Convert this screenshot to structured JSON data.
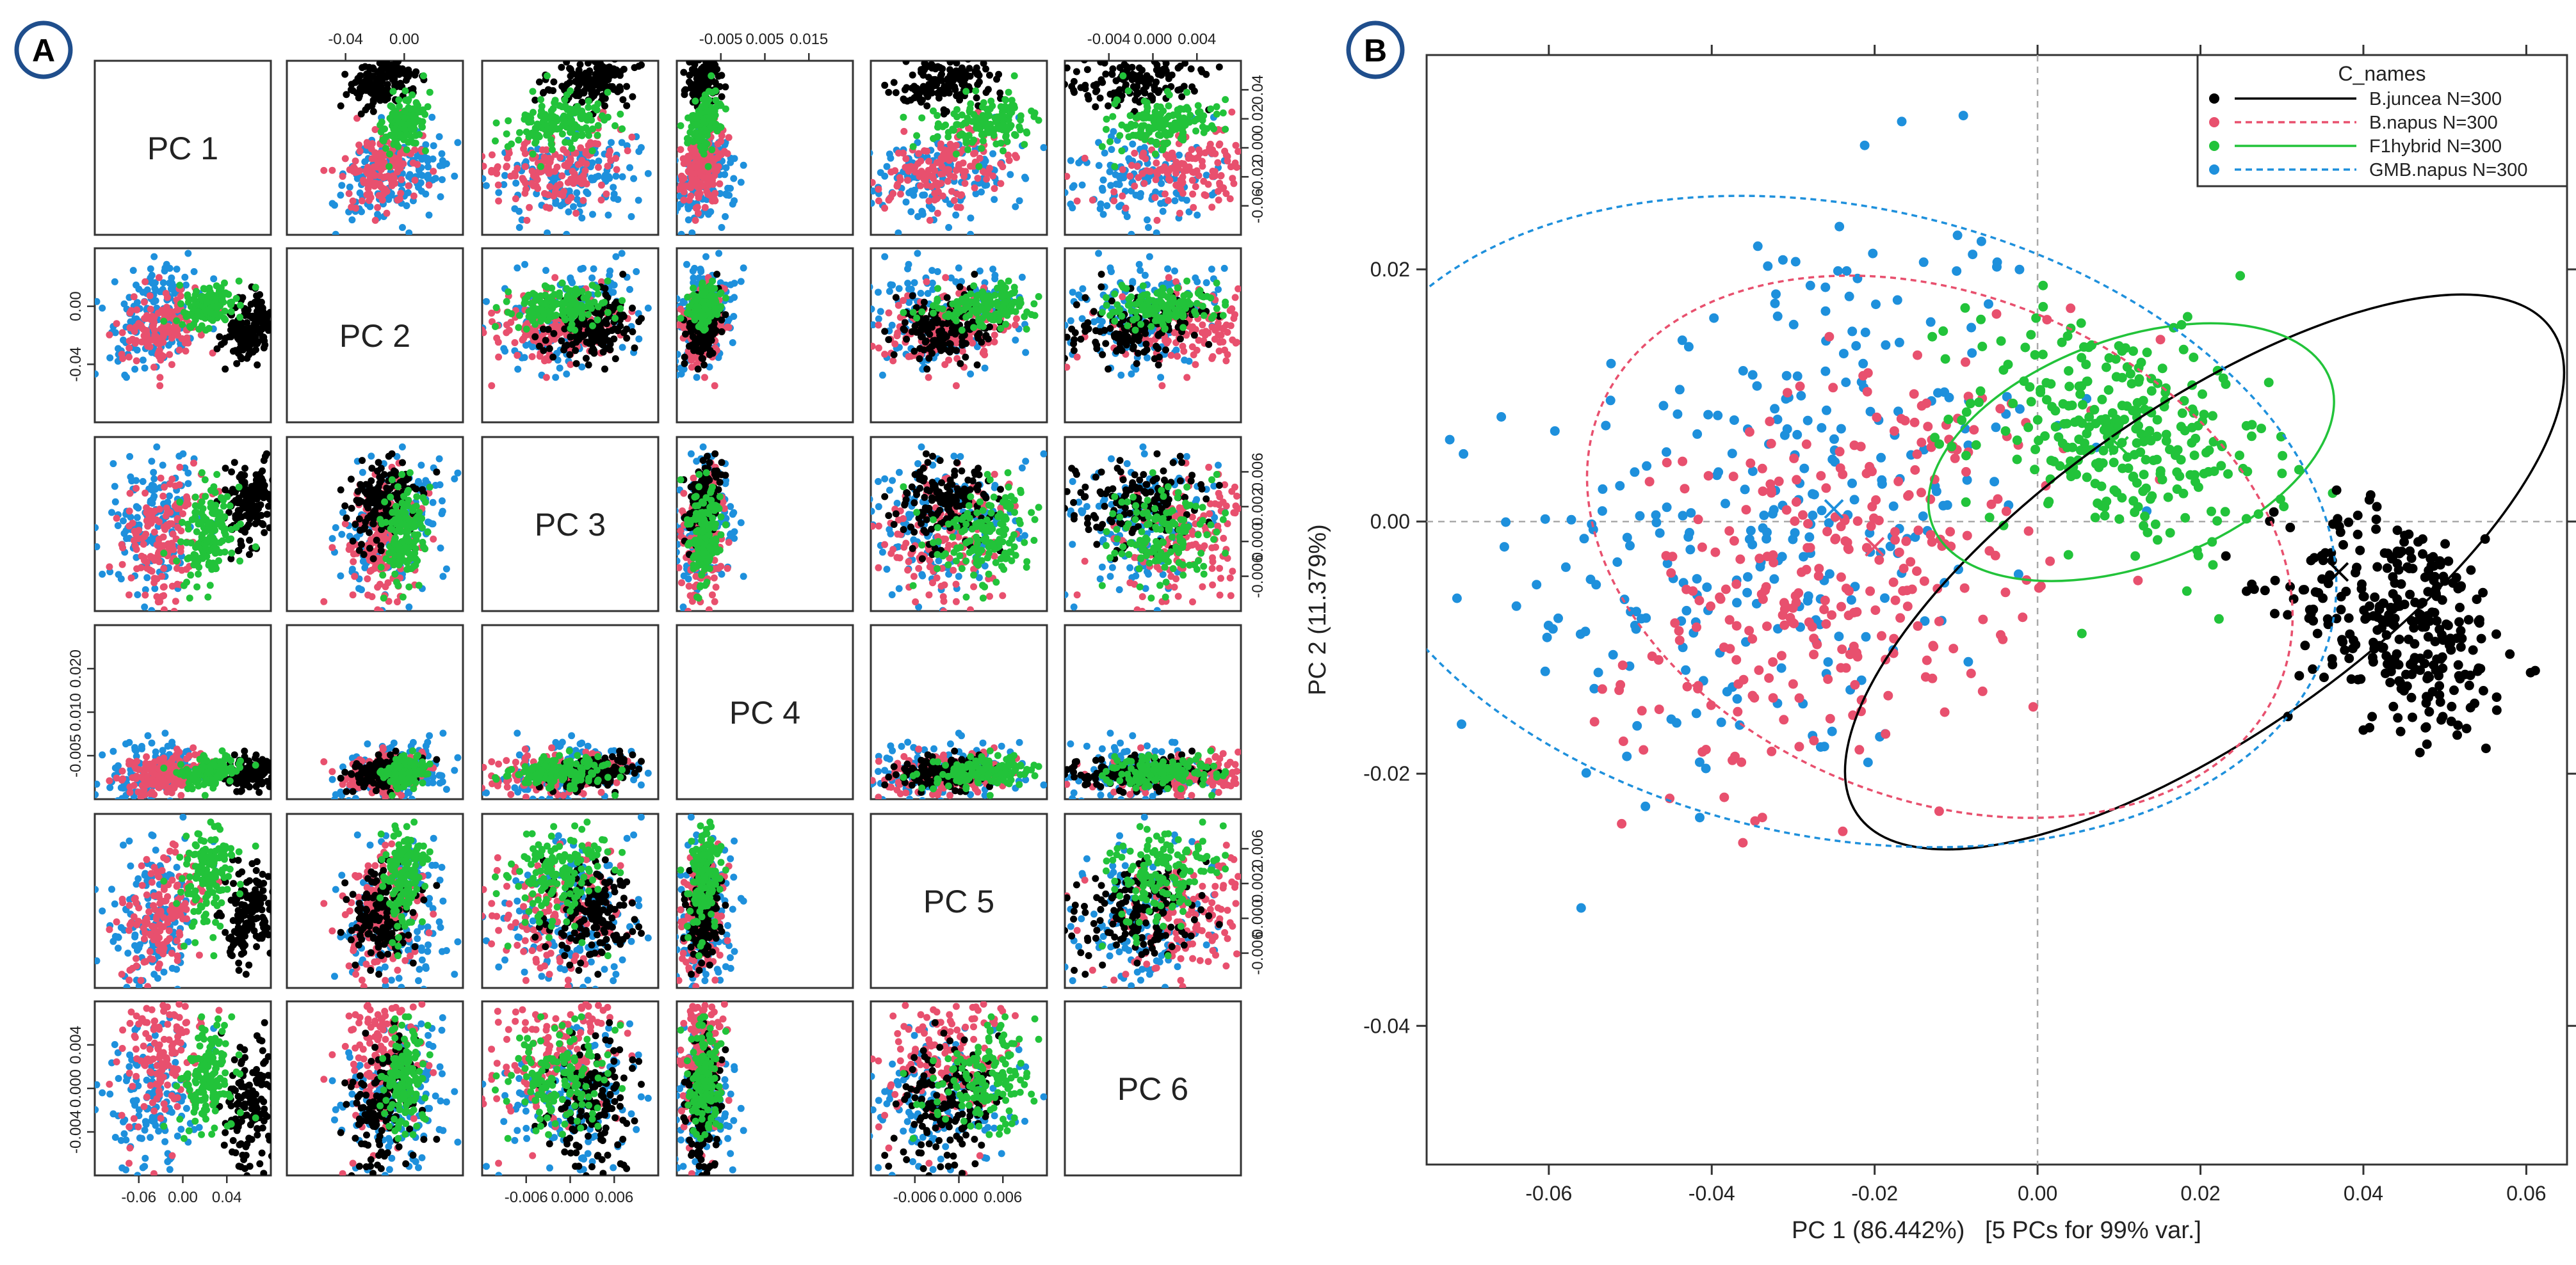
{
  "panels": {
    "A": {
      "badge": "A",
      "variables": [
        "PC 1",
        "PC 2",
        "PC 3",
        "PC 4",
        "PC 5",
        "PC 6"
      ],
      "top_ticks": [
        [
          "-0.04",
          "0.00"
        ],
        [
          "-0.005",
          "0.005",
          "0.015"
        ],
        [
          "-0.004",
          "0.000",
          "0.004"
        ]
      ],
      "right_ticks": [
        [
          "0.04",
          "0.02",
          "0.00",
          "-0.02",
          "-0.06"
        ],
        [
          "0.006",
          "0.002",
          "0.000",
          "-0.006"
        ],
        [
          "0.006",
          "0.002",
          "0.000",
          "-0.006"
        ]
      ],
      "left_ticks": [
        [
          "0.00",
          "-0.04"
        ],
        [
          "0.020",
          "0.010",
          "-0.005"
        ],
        [
          "0.004",
          "0.000",
          "-0.004"
        ]
      ],
      "bottom_ticks": [
        [
          "-0.06",
          "0.00",
          "0.04"
        ],
        [
          "-0.006",
          "0.000",
          "0.006"
        ],
        [
          "-0.006",
          "0.000",
          "0.006"
        ]
      ]
    },
    "B": {
      "badge": "B",
      "legend_title": "C_names",
      "legend_entries": [
        {
          "name": "B.juncea",
          "n": "N=300",
          "color": "#000000"
        },
        {
          "name": "B.napus",
          "n": "N=300",
          "color": "#e8506e"
        },
        {
          "name": "F1hybrid",
          "n": "N=300",
          "color": "#22c33a"
        },
        {
          "name": "GMB.napus",
          "n": "N=300",
          "color": "#1e90dc"
        }
      ]
    }
  },
  "chart_data": [
    {
      "type": "scatter",
      "subtype": "pairs-matrix",
      "panel": "A",
      "variables": [
        "PC 1",
        "PC 2",
        "PC 3",
        "PC 4",
        "PC 5",
        "PC 6"
      ],
      "series": [
        {
          "name": "B.juncea",
          "color": "#000000",
          "n": 300,
          "means": [
            0.037,
            -0.004,
            0.002,
            -0.002,
            -0.001,
            -0.001
          ],
          "sds": [
            0.01,
            0.007,
            0.002,
            0.0012,
            0.002,
            0.0018
          ]
        },
        {
          "name": "B.napus",
          "color": "#e8506e",
          "n": 300,
          "means": [
            -0.024,
            -0.003,
            -0.001,
            -0.002,
            -0.001,
            0.002
          ],
          "sds": [
            0.014,
            0.009,
            0.003,
            0.0016,
            0.0026,
            0.0022
          ]
        },
        {
          "name": "F1hybrid",
          "color": "#22c33a",
          "n": 300,
          "means": [
            0.008,
            0.007,
            -0.001,
            -0.002,
            0.002,
            0.0005
          ],
          "sds": [
            0.01,
            0.005,
            0.002,
            0.0012,
            0.002,
            0.0015
          ]
        },
        {
          "name": "GMB.napus",
          "color": "#1e90dc",
          "n": 300,
          "means": [
            -0.031,
            0.001,
            0.0,
            -0.002,
            -0.002,
            -0.001
          ],
          "sds": [
            0.016,
            0.012,
            0.003,
            0.0024,
            0.003,
            0.0024
          ]
        }
      ],
      "ranges": [
        [
          -0.07,
          0.05
        ],
        [
          -0.05,
          0.035
        ],
        [
          -0.007,
          0.007
        ],
        [
          -0.006,
          0.021
        ],
        [
          -0.007,
          0.007
        ],
        [
          -0.005,
          0.005
        ]
      ]
    },
    {
      "type": "scatter",
      "panel": "B",
      "title": "",
      "xlabel": "PC 1 (86.442%)   [5 PCs for 99% var.]",
      "ylabel": "PC 2 (11.379%)",
      "xlim": [
        -0.075,
        0.065
      ],
      "ylim": [
        -0.051,
        0.037
      ],
      "xticks": [
        "-0.06",
        "-0.04",
        "-0.02",
        "0.00",
        "0.02",
        "0.04",
        "0.06"
      ],
      "yticks": [
        "-0.04",
        "-0.02",
        "0.00",
        "0.02"
      ],
      "reference_lines": {
        "x": 0,
        "y": 0
      },
      "legend_title": "C_names",
      "legend_position": "top-right",
      "series": [
        {
          "name": "B.juncea",
          "n": 300,
          "color": "#000000",
          "ellipse_style": "solid",
          "center": [
            0.037,
            -0.004
          ],
          "ellipse": {
            "center": [
              0.0205,
              -0.004
            ],
            "rx": 0.052,
            "ry": 0.013,
            "angle_deg": -35
          },
          "cluster": {
            "mean": [
              0.045,
              -0.008
            ],
            "sd": [
              0.007,
              0.0045
            ],
            "corr": -0.3
          }
        },
        {
          "name": "B.napus",
          "n": 300,
          "color": "#e8506e",
          "ellipse_style": "dashed",
          "center": [
            -0.02,
            -0.002
          ],
          "ellipse": {
            "center": [
              -0.012,
              -0.002
            ],
            "rx": 0.045,
            "ry": 0.02,
            "angle_deg": 22
          },
          "cluster": {
            "mean": [
              -0.024,
              -0.004
            ],
            "sd": [
              0.013,
              0.008
            ],
            "corr": 0.35
          }
        },
        {
          "name": "F1hybrid",
          "n": 300,
          "color": "#22c33a",
          "ellipse_style": "solid",
          "center": [
            0.01,
            0.006
          ],
          "ellipse": {
            "center": [
              0.0115,
              0.0055
            ],
            "rx": 0.026,
            "ry": 0.009,
            "angle_deg": -20
          },
          "cluster": {
            "mean": [
              0.01,
              0.007
            ],
            "sd": [
              0.009,
              0.0045
            ],
            "corr": -0.3
          }
        },
        {
          "name": "GMB.napus",
          "n": 300,
          "color": "#1e90dc",
          "ellipse_style": "dashed",
          "center": [
            -0.025,
            0.001
          ],
          "ellipse": {
            "center": [
              -0.0245,
              0.0
            ],
            "rx": 0.062,
            "ry": 0.025,
            "angle_deg": 12
          },
          "cluster": {
            "mean": [
              -0.031,
              0.001
            ],
            "sd": [
              0.016,
              0.012
            ],
            "corr": 0.25
          }
        }
      ]
    }
  ]
}
